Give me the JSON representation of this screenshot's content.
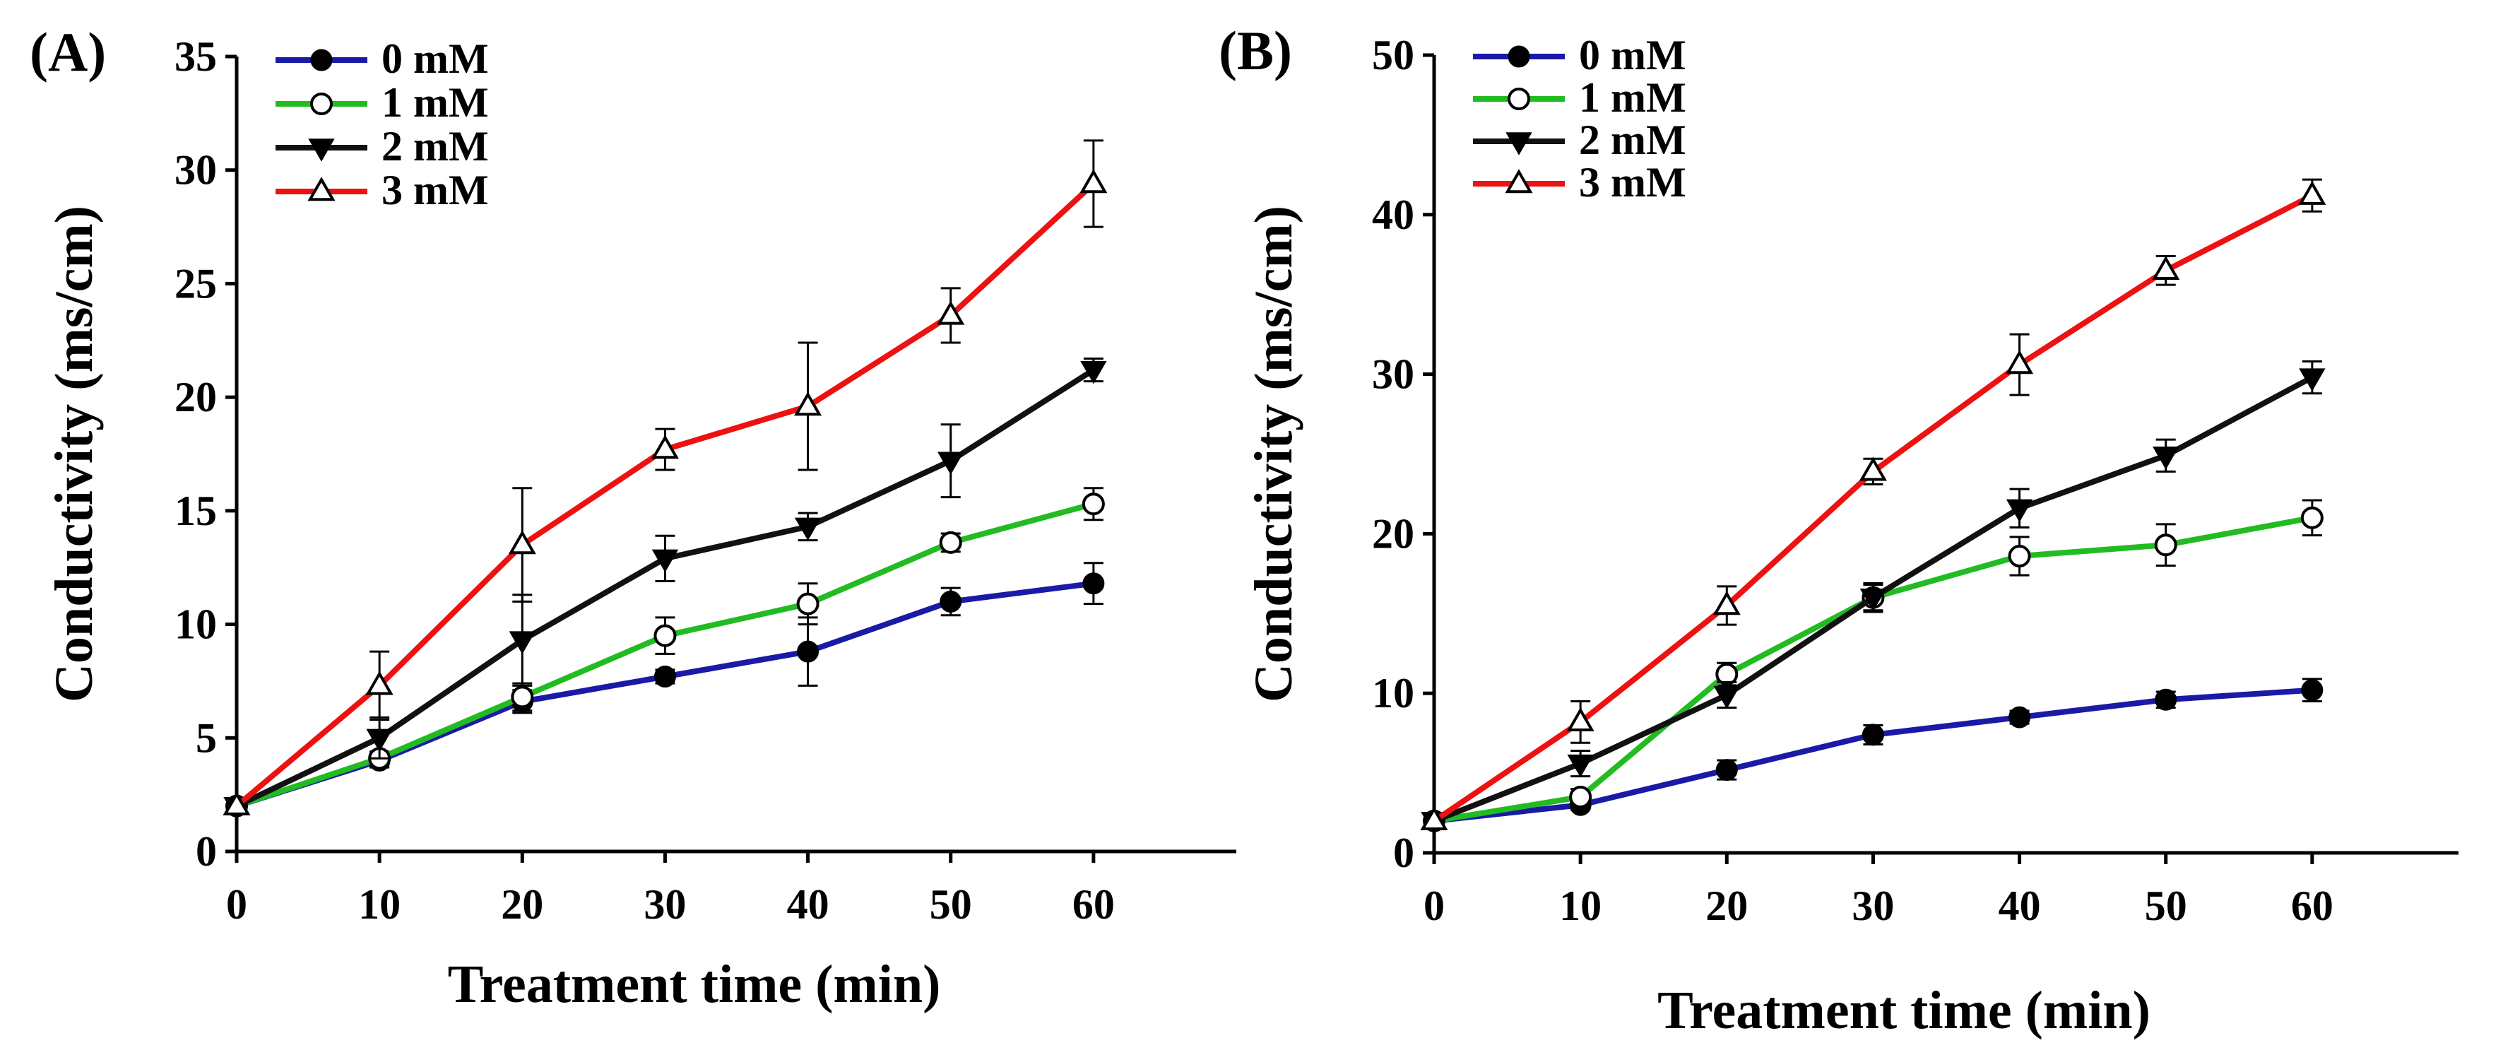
{
  "chart_data": [
    {
      "panel": "(A)",
      "type": "line",
      "xlabel": "Treatment time (min)",
      "ylabel": "Conductivity (ms/cm)",
      "x": [
        0,
        10,
        20,
        30,
        40,
        50,
        60
      ],
      "xticks": [
        0,
        10,
        20,
        30,
        40,
        50,
        60
      ],
      "xlim": [
        0,
        70
      ],
      "ylim": [
        0,
        35
      ],
      "yticks": [
        0,
        5,
        10,
        15,
        20,
        25,
        30,
        35
      ],
      "grid": false,
      "legend_position": "top-left",
      "series": [
        {
          "name": "0 mM",
          "color": "#1a1aa6",
          "marker": "filled-circle",
          "values": [
            2.0,
            4.0,
            6.6,
            7.7,
            8.8,
            11.0,
            11.8
          ],
          "errors": [
            0.2,
            0.3,
            0.5,
            0.3,
            1.5,
            0.6,
            0.9
          ]
        },
        {
          "name": "1 mM",
          "color": "#22bb22",
          "marker": "open-circle",
          "values": [
            2.0,
            4.1,
            6.8,
            9.5,
            10.9,
            13.6,
            15.3
          ],
          "errors": [
            0.2,
            0.3,
            0.6,
            0.8,
            0.9,
            0.4,
            0.7
          ]
        },
        {
          "name": "2 mM",
          "color": "#111111",
          "marker": "filled-triangle-down",
          "values": [
            2.0,
            5.0,
            9.3,
            12.9,
            14.3,
            17.2,
            21.2
          ],
          "errors": [
            0.2,
            0.9,
            2.0,
            1.0,
            0.6,
            1.6,
            0.5
          ]
        },
        {
          "name": "3 mM",
          "color": "#ee1111",
          "marker": "open-triangle-up",
          "values": [
            2.0,
            7.3,
            13.5,
            17.7,
            19.6,
            23.6,
            29.4
          ],
          "errors": [
            0.2,
            1.5,
            2.5,
            0.9,
            2.8,
            1.2,
            1.9
          ]
        }
      ]
    },
    {
      "panel": "(B)",
      "type": "line",
      "xlabel": "Treatment time (min)",
      "ylabel": "Conductivity (ms/cm)",
      "x": [
        0,
        10,
        20,
        30,
        40,
        50,
        60
      ],
      "xticks": [
        0,
        10,
        20,
        30,
        40,
        50,
        60
      ],
      "xlim": [
        0,
        70
      ],
      "ylim": [
        0,
        50
      ],
      "yticks": [
        0,
        10,
        20,
        30,
        40,
        50
      ],
      "grid": false,
      "legend_position": "top-left",
      "series": [
        {
          "name": "0 mM",
          "color": "#1a1aa6",
          "marker": "filled-circle",
          "values": [
            2.0,
            3.0,
            5.2,
            7.4,
            8.5,
            9.6,
            10.2
          ],
          "errors": [
            0.2,
            0.3,
            0.6,
            0.6,
            0.4,
            0.5,
            0.7
          ]
        },
        {
          "name": "1 mM",
          "color": "#22bb22",
          "marker": "open-circle",
          "values": [
            2.0,
            3.5,
            11.2,
            16.0,
            18.6,
            19.3,
            21.0
          ],
          "errors": [
            0.2,
            0.5,
            0.7,
            0.8,
            1.2,
            1.3,
            1.1
          ]
        },
        {
          "name": "2 mM",
          "color": "#111111",
          "marker": "filled-triangle-down",
          "values": [
            2.0,
            5.6,
            9.9,
            16.0,
            21.6,
            24.9,
            29.8
          ],
          "errors": [
            0.2,
            0.8,
            0.8,
            0.9,
            1.2,
            1.0,
            1.0
          ]
        },
        {
          "name": "3 mM",
          "color": "#ee1111",
          "marker": "open-triangle-up",
          "values": [
            2.0,
            8.2,
            15.5,
            23.9,
            30.6,
            36.5,
            41.2
          ],
          "errors": [
            0.2,
            1.3,
            1.2,
            0.8,
            1.9,
            0.9,
            1.0
          ]
        }
      ]
    }
  ]
}
